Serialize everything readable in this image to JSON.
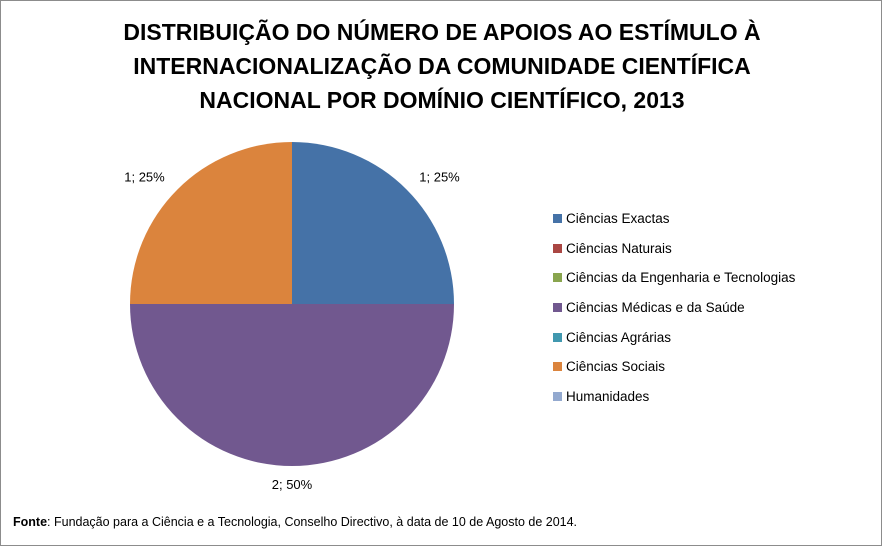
{
  "chart_data": {
    "type": "pie",
    "title_lines": [
      "DISTRIBUIÇÃO DO NÚMERO DE APOIOS AO ESTÍMULO À",
      "INTERNACIONALIZAÇÃO DA COMUNIDADE CIENTÍFICA",
      "NACIONAL POR DOMÍNIO CIENTÍFICO, 2013"
    ],
    "slices": [
      {
        "name": "Ciências Exactas",
        "value": 1,
        "percent": 25,
        "label": "1; 25%",
        "color": "#4572a7"
      },
      {
        "name": "Ciências Naturais",
        "value": 0,
        "percent": 0,
        "label": "",
        "color": "#aa4643"
      },
      {
        "name": "Ciências da Engenharia e Tecnologias",
        "value": 0,
        "percent": 0,
        "label": "",
        "color": "#89a54e"
      },
      {
        "name": "Ciências Médicas e da Saúde",
        "value": 2,
        "percent": 50,
        "label": "2; 50%",
        "color": "#71588f"
      },
      {
        "name": "Ciências Agrárias",
        "value": 0,
        "percent": 0,
        "label": "",
        "color": "#4198af"
      },
      {
        "name": "Ciências Sociais",
        "value": 1,
        "percent": 25,
        "label": "1; 25%",
        "color": "#db843d"
      },
      {
        "name": "Humanidades",
        "value": 0,
        "percent": 0,
        "label": "",
        "color": "#93a9cf"
      }
    ],
    "legend_position": "right"
  },
  "footer": {
    "source_label": "Fonte",
    "source_text": ": Fundação para a Ciência e a Tecnologia, Conselho Directivo, à data de 10 de Agosto de 2014."
  }
}
